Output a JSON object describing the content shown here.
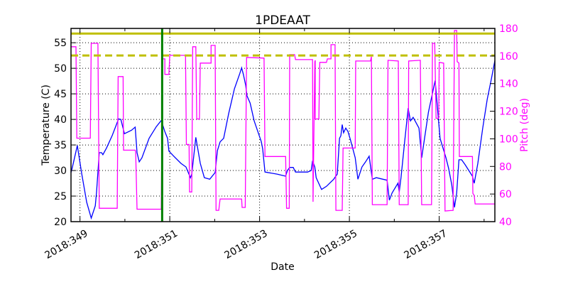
{
  "chart_data": {
    "type": "line",
    "title": "1PDEAAT",
    "xlabel": "Date",
    "ylabel": "Temperature (C)",
    "y2label": "Pitch (deg)",
    "xlim": [
      348.8,
      358.24
    ],
    "ylim": [
      20,
      57.8
    ],
    "y2lim": [
      40,
      180
    ],
    "grid": true,
    "x_major_ticks": [
      349,
      351,
      353,
      355,
      357
    ],
    "x_tick_labels": [
      "2018:349",
      "2018:351",
      "2018:353",
      "2018:355",
      "2018:357"
    ],
    "x_minor_ticks": [
      350,
      352,
      354,
      356,
      358
    ],
    "y_ticks": [
      20,
      25,
      30,
      35,
      40,
      45,
      50,
      55
    ],
    "y_tick_labels": [
      "20",
      "25",
      "30",
      "35",
      "40",
      "45",
      "50",
      "55"
    ],
    "y2_ticks": [
      40,
      60,
      80,
      100,
      120,
      140,
      160,
      180
    ],
    "y2_tick_labels": [
      "40",
      "60",
      "80",
      "100",
      "120",
      "140",
      "160",
      "180"
    ],
    "colors": {
      "temperature": "#0000ff",
      "pitch": "#ff00ff",
      "limit": "#bfbf00",
      "marker": "#008000",
      "y2_axis": "#ff00ff"
    },
    "limit_lines": [
      {
        "value": 56.8,
        "style": "solid"
      },
      {
        "value": 52.5,
        "style": "dashed"
      }
    ],
    "vertical_marker": 350.83,
    "series": [
      {
        "axis": "left",
        "color": "#0000ff",
        "points": [
          [
            348.8,
            29.6
          ],
          [
            348.83,
            30.6
          ],
          [
            348.94,
            34.9
          ],
          [
            349.04,
            29.3
          ],
          [
            349.15,
            23.8
          ],
          [
            349.25,
            20.7
          ],
          [
            349.34,
            23.1
          ],
          [
            349.37,
            25.8
          ],
          [
            349.43,
            33.5
          ],
          [
            349.48,
            33.5
          ],
          [
            349.51,
            33.1
          ],
          [
            349.59,
            34.4
          ],
          [
            349.72,
            36.9
          ],
          [
            349.86,
            40.1
          ],
          [
            349.91,
            40.0
          ],
          [
            349.99,
            37.2
          ],
          [
            350.15,
            37.9
          ],
          [
            350.23,
            38.5
          ],
          [
            350.27,
            33.5
          ],
          [
            350.32,
            31.7
          ],
          [
            350.38,
            32.5
          ],
          [
            350.54,
            36.3
          ],
          [
            350.7,
            38.6
          ],
          [
            350.83,
            40.0
          ],
          [
            350.84,
            39.0
          ],
          [
            350.89,
            37.6
          ],
          [
            350.95,
            36.3
          ],
          [
            350.98,
            33.8
          ],
          [
            351.09,
            32.8
          ],
          [
            351.25,
            31.4
          ],
          [
            351.36,
            30.7
          ],
          [
            351.46,
            28.6
          ],
          [
            351.49,
            29.3
          ],
          [
            351.58,
            36.5
          ],
          [
            351.68,
            31.4
          ],
          [
            351.77,
            28.6
          ],
          [
            351.89,
            28.3
          ],
          [
            352.01,
            29.6
          ],
          [
            352.06,
            33.9
          ],
          [
            352.12,
            35.6
          ],
          [
            352.2,
            36.3
          ],
          [
            352.31,
            41.1
          ],
          [
            352.44,
            46.0
          ],
          [
            352.56,
            49.0
          ],
          [
            352.6,
            50.1
          ],
          [
            352.64,
            48.8
          ],
          [
            352.69,
            46.7
          ],
          [
            352.72,
            44.6
          ],
          [
            352.79,
            43.2
          ],
          [
            352.88,
            39.7
          ],
          [
            353.04,
            35.6
          ],
          [
            353.07,
            34.2
          ],
          [
            353.12,
            29.7
          ],
          [
            353.39,
            29.3
          ],
          [
            353.58,
            28.9
          ],
          [
            353.62,
            30.0
          ],
          [
            353.67,
            30.6
          ],
          [
            353.75,
            30.6
          ],
          [
            353.8,
            29.7
          ],
          [
            354.07,
            29.7
          ],
          [
            354.15,
            30.0
          ],
          [
            354.18,
            31.9
          ],
          [
            354.23,
            30.7
          ],
          [
            354.26,
            28.6
          ],
          [
            354.38,
            26.3
          ],
          [
            354.49,
            26.9
          ],
          [
            354.65,
            28.3
          ],
          [
            354.73,
            29.3
          ],
          [
            354.78,
            36.3
          ],
          [
            354.81,
            36.8
          ],
          [
            354.84,
            39.0
          ],
          [
            354.87,
            37.4
          ],
          [
            354.92,
            38.3
          ],
          [
            354.97,
            37.6
          ],
          [
            355.03,
            35.8
          ],
          [
            355.13,
            32.5
          ],
          [
            355.19,
            28.3
          ],
          [
            355.28,
            30.7
          ],
          [
            355.36,
            31.7
          ],
          [
            355.44,
            32.8
          ],
          [
            355.51,
            28.3
          ],
          [
            355.6,
            28.6
          ],
          [
            355.84,
            28.1
          ],
          [
            355.89,
            24.2
          ],
          [
            355.95,
            25.6
          ],
          [
            356.08,
            27.5
          ],
          [
            356.11,
            25.8
          ],
          [
            356.15,
            28.6
          ],
          [
            356.23,
            35.6
          ],
          [
            356.31,
            42.2
          ],
          [
            356.36,
            39.7
          ],
          [
            356.42,
            40.4
          ],
          [
            356.55,
            38.3
          ],
          [
            356.61,
            32.5
          ],
          [
            356.76,
            41.4
          ],
          [
            356.91,
            47.6
          ],
          [
            357.02,
            36.3
          ],
          [
            357.15,
            32.5
          ],
          [
            357.21,
            30.4
          ],
          [
            357.28,
            27.2
          ],
          [
            357.34,
            22.8
          ],
          [
            357.39,
            25.6
          ],
          [
            357.44,
            32.1
          ],
          [
            357.5,
            32.1
          ],
          [
            357.58,
            31.1
          ],
          [
            357.74,
            28.9
          ],
          [
            357.78,
            27.5
          ],
          [
            357.86,
            31.4
          ],
          [
            357.97,
            38.3
          ],
          [
            358.07,
            43.9
          ],
          [
            358.16,
            47.8
          ],
          [
            358.24,
            51.5
          ]
        ]
      },
      {
        "axis": "right",
        "color": "#ff00ff",
        "points": [
          [
            348.8,
            166.7
          ],
          [
            348.91,
            166.7
          ],
          [
            348.93,
            100.5
          ],
          [
            349.23,
            100.5
          ],
          [
            349.25,
            169.2
          ],
          [
            349.4,
            169.2
          ],
          [
            349.43,
            49.7
          ],
          [
            349.83,
            49.7
          ],
          [
            349.85,
            145.1
          ],
          [
            349.96,
            145.1
          ],
          [
            349.97,
            91.8
          ],
          [
            350.23,
            91.8
          ],
          [
            350.24,
            90.3
          ],
          [
            350.27,
            49.0
          ],
          [
            350.81,
            49.0
          ],
          [
            350.84,
            157.9
          ],
          [
            350.89,
            157.9
          ],
          [
            350.89,
            146.7
          ],
          [
            350.98,
            146.7
          ],
          [
            351.0,
            160.5
          ],
          [
            351.35,
            160.5
          ],
          [
            351.37,
            95.9
          ],
          [
            351.43,
            95.9
          ],
          [
            351.44,
            61.5
          ],
          [
            351.49,
            61.5
          ],
          [
            351.51,
            166.7
          ],
          [
            351.58,
            166.7
          ],
          [
            351.6,
            114.4
          ],
          [
            351.66,
            114.4
          ],
          [
            351.68,
            154.9
          ],
          [
            351.92,
            154.9
          ],
          [
            351.92,
            167.7
          ],
          [
            352.01,
            167.7
          ],
          [
            352.03,
            48.2
          ],
          [
            352.09,
            48.2
          ],
          [
            352.12,
            56.4
          ],
          [
            352.6,
            56.4
          ],
          [
            352.61,
            50.3
          ],
          [
            352.68,
            50.3
          ],
          [
            352.71,
            159.0
          ],
          [
            353.1,
            158.5
          ],
          [
            353.12,
            87.2
          ],
          [
            353.58,
            87.2
          ],
          [
            353.6,
            49.7
          ],
          [
            353.66,
            49.7
          ],
          [
            353.67,
            161.0
          ],
          [
            353.78,
            161.0
          ],
          [
            353.8,
            157.4
          ],
          [
            354.18,
            157.4
          ],
          [
            354.19,
            54.4
          ],
          [
            354.23,
            155.9
          ],
          [
            354.24,
            156.9
          ],
          [
            354.24,
            114.4
          ],
          [
            354.32,
            114.4
          ],
          [
            354.34,
            155.4
          ],
          [
            354.49,
            155.4
          ],
          [
            354.51,
            157.9
          ],
          [
            354.59,
            157.9
          ],
          [
            354.59,
            168.2
          ],
          [
            354.68,
            168.2
          ],
          [
            354.7,
            48.2
          ],
          [
            354.84,
            48.2
          ],
          [
            354.86,
            93.3
          ],
          [
            355.13,
            93.3
          ],
          [
            355.14,
            156.4
          ],
          [
            355.47,
            156.4
          ],
          [
            355.49,
            159.5
          ],
          [
            355.51,
            52.3
          ],
          [
            355.84,
            52.3
          ],
          [
            355.86,
            156.9
          ],
          [
            356.09,
            156.4
          ],
          [
            356.11,
            52.3
          ],
          [
            356.31,
            52.3
          ],
          [
            356.32,
            156.4
          ],
          [
            356.58,
            156.9
          ],
          [
            356.61,
            52.3
          ],
          [
            356.83,
            52.3
          ],
          [
            356.85,
            169.2
          ],
          [
            356.9,
            169.2
          ],
          [
            356.93,
            114.9
          ],
          [
            356.99,
            114.9
          ],
          [
            357.0,
            155.4
          ],
          [
            357.1,
            154.9
          ],
          [
            357.13,
            47.7
          ],
          [
            357.31,
            48.2
          ],
          [
            357.34,
            178.5
          ],
          [
            357.39,
            178.5
          ],
          [
            357.4,
            155.9
          ],
          [
            357.44,
            154.9
          ],
          [
            357.45,
            87.2
          ],
          [
            357.74,
            87.2
          ],
          [
            357.75,
            60.5
          ],
          [
            357.78,
            59.0
          ],
          [
            357.8,
            52.8
          ],
          [
            358.24,
            52.8
          ]
        ]
      }
    ]
  }
}
